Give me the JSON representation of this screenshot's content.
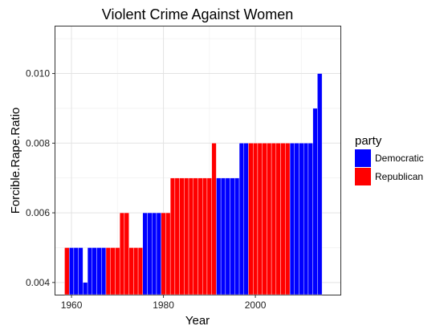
{
  "chart_data": {
    "type": "bar",
    "title": "Violent Crime Against Women",
    "xlabel": "Year",
    "ylabel": "Forcible.Rape.Ratio",
    "xlim": [
      1956.5,
      2018.5
    ],
    "ylim": [
      0.00365,
      0.01135
    ],
    "x_ticks": [
      1960,
      1980,
      2000
    ],
    "y_ticks": [
      0.004,
      0.006,
      0.008,
      0.01
    ],
    "y_tick_labels": [
      "0.004",
      "0.006",
      "0.008",
      "0.010"
    ],
    "grid": true,
    "legend_position": "right",
    "legend": {
      "title": "party",
      "entries": [
        {
          "label": "Democratic",
          "color": "#0000FF"
        },
        {
          "label": "Republican",
          "color": "#FF0000"
        }
      ]
    },
    "colors": {
      "Democratic": "#0000FF",
      "Republican": "#FF0000"
    },
    "series": [
      {
        "name": "Democratic",
        "points": [
          [
            1960,
            0.005
          ],
          [
            1961,
            0.005
          ],
          [
            1962,
            0.005
          ],
          [
            1963,
            0.004
          ],
          [
            1964,
            0.005
          ],
          [
            1965,
            0.005
          ],
          [
            1966,
            0.005
          ],
          [
            1967,
            0.005
          ],
          [
            1976,
            0.006
          ],
          [
            1977,
            0.006
          ],
          [
            1978,
            0.006
          ],
          [
            1979,
            0.006
          ],
          [
            1992,
            0.007
          ],
          [
            1993,
            0.007
          ],
          [
            1994,
            0.007
          ],
          [
            1995,
            0.007
          ],
          [
            1996,
            0.007
          ],
          [
            1997,
            0.008
          ],
          [
            1998,
            0.008
          ],
          [
            2008,
            0.008
          ],
          [
            2009,
            0.008
          ],
          [
            2010,
            0.008
          ],
          [
            2011,
            0.008
          ],
          [
            2012,
            0.008
          ],
          [
            2013,
            0.009
          ],
          [
            2014,
            0.01
          ]
        ]
      },
      {
        "name": "Republican",
        "points": [
          [
            1959,
            0.005
          ],
          [
            1968,
            0.005
          ],
          [
            1969,
            0.005
          ],
          [
            1970,
            0.005
          ],
          [
            1971,
            0.006
          ],
          [
            1972,
            0.006
          ],
          [
            1973,
            0.005
          ],
          [
            1974,
            0.005
          ],
          [
            1975,
            0.005
          ],
          [
            1980,
            0.006
          ],
          [
            1981,
            0.006
          ],
          [
            1982,
            0.007
          ],
          [
            1983,
            0.007
          ],
          [
            1984,
            0.007
          ],
          [
            1985,
            0.007
          ],
          [
            1986,
            0.007
          ],
          [
            1987,
            0.007
          ],
          [
            1988,
            0.007
          ],
          [
            1989,
            0.007
          ],
          [
            1990,
            0.007
          ],
          [
            1991,
            0.008
          ],
          [
            1999,
            0.008
          ],
          [
            2000,
            0.008
          ],
          [
            2001,
            0.008
          ],
          [
            2002,
            0.008
          ],
          [
            2003,
            0.008
          ],
          [
            2004,
            0.008
          ],
          [
            2005,
            0.008
          ],
          [
            2006,
            0.008
          ],
          [
            2007,
            0.008
          ]
        ]
      }
    ]
  }
}
